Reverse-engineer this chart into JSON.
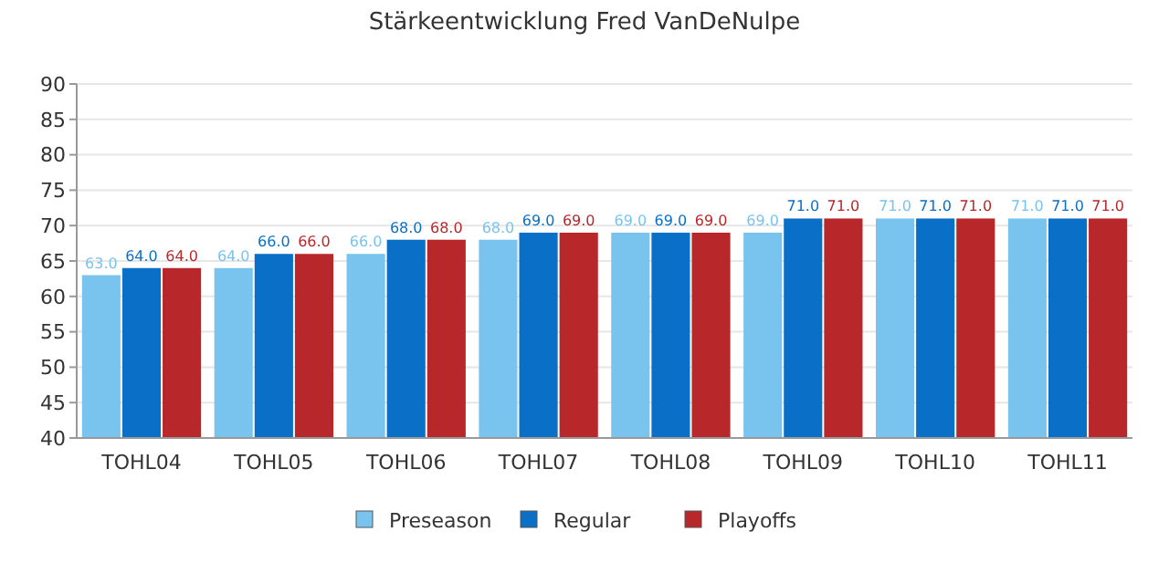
{
  "chart_data": {
    "type": "bar",
    "title": "Stärkeentwicklung Fred VanDeNulpe",
    "categories": [
      "TOHL04",
      "TOHL05",
      "TOHL06",
      "TOHL07",
      "TOHL08",
      "TOHL09",
      "TOHL10",
      "TOHL11"
    ],
    "series": [
      {
        "name": "Preseason",
        "color": "#79c4ef",
        "values": [
          63,
          64,
          66,
          68,
          69,
          69,
          71,
          71
        ],
        "value_labels": [
          "63.0",
          "64.0",
          "66.0",
          "68.0",
          "69.0",
          "69.0",
          "71.0",
          "71.0"
        ]
      },
      {
        "name": "Regular",
        "color": "#0a6fc6",
        "values": [
          64,
          66,
          68,
          69,
          69,
          71,
          71,
          71
        ],
        "value_labels": [
          "64.0",
          "66.0",
          "68.0",
          "69.0",
          "69.0",
          "71.0",
          "71.0",
          "71.0"
        ]
      },
      {
        "name": "Playoffs",
        "color": "#b8282b",
        "values": [
          64,
          66,
          68,
          69,
          69,
          71,
          71,
          71
        ],
        "value_labels": [
          "64.0",
          "66.0",
          "68.0",
          "69.0",
          "69.0",
          "71.0",
          "71.0",
          "71.0"
        ]
      }
    ],
    "ylim": [
      40,
      90
    ],
    "yticks": [
      40,
      45,
      50,
      55,
      60,
      65,
      70,
      75,
      80,
      85,
      90
    ],
    "grid": "y",
    "legend": "bottom"
  }
}
